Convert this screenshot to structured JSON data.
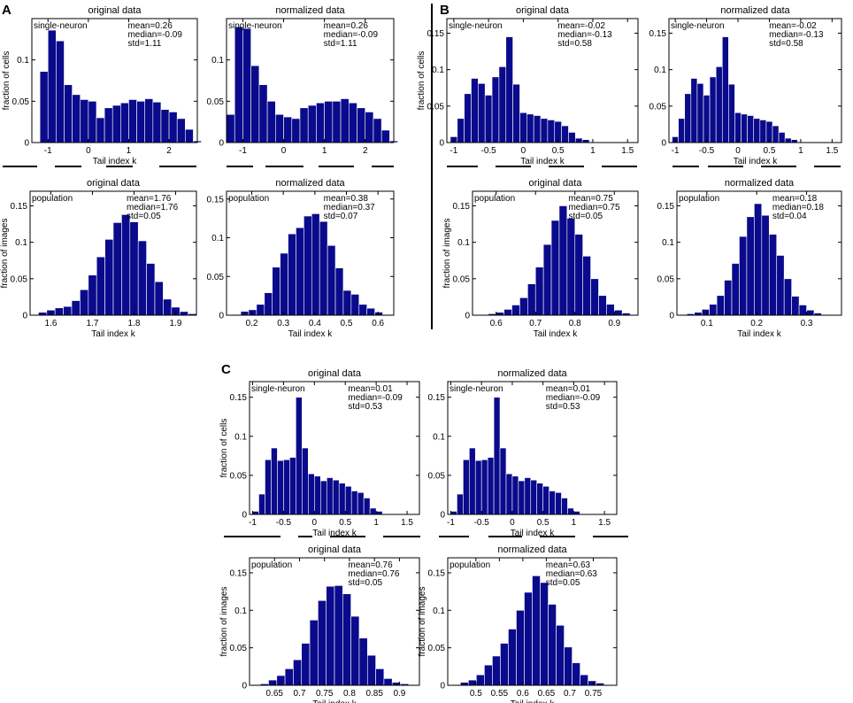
{
  "panel_labels": [
    "A",
    "B",
    "C"
  ],
  "chart_data": [
    {
      "id": "A1",
      "type": "bar",
      "panel": "A",
      "title": "original data",
      "subtitle": "single-neuron",
      "xlabel": "Tail index k",
      "ylabel": "fraction of cells",
      "stats": [
        "mean=0.26",
        "median=-0.09",
        "std=1.11"
      ],
      "xlim": [
        -1.4,
        2.7
      ],
      "ylim": [
        0,
        0.15
      ],
      "xticks": [
        -1,
        0,
        1,
        2
      ],
      "xticklabels": [
        "-1",
        "0",
        "1",
        "2"
      ],
      "yticks": [
        0,
        0.05,
        0.1
      ],
      "yticklabels": [
        "0",
        "0.05",
        "0.1"
      ],
      "bin_start": -1.4,
      "bin_width": 0.2,
      "values": [
        0.0,
        0.086,
        0.136,
        0.123,
        0.07,
        0.058,
        0.052,
        0.05,
        0.03,
        0.042,
        0.045,
        0.048,
        0.052,
        0.05,
        0.053,
        0.049,
        0.04,
        0.037,
        0.029,
        0.016,
        0.002
      ]
    },
    {
      "id": "A2",
      "type": "bar",
      "panel": "A",
      "title": "normalized data",
      "subtitle": "single-neuron",
      "xlabel": "",
      "ylabel": "",
      "stats": [
        "mean=0.26",
        "median=-0.09",
        "std=1.11"
      ],
      "xlim": [
        -1.4,
        2.7
      ],
      "ylim": [
        0,
        0.15
      ],
      "xticks": [
        -1,
        0,
        1,
        2
      ],
      "xticklabels": [
        "-1",
        "0",
        "1",
        "2"
      ],
      "yticks": [
        0,
        0.05,
        0.1
      ],
      "yticklabels": [
        "0",
        "0.05",
        "0.1"
      ],
      "bin_start": -1.4,
      "bin_width": 0.2,
      "values": [
        0.034,
        0.14,
        0.138,
        0.093,
        0.07,
        0.05,
        0.034,
        0.031,
        0.029,
        0.042,
        0.045,
        0.048,
        0.05,
        0.05,
        0.053,
        0.048,
        0.042,
        0.037,
        0.029,
        0.015,
        0.002
      ]
    },
    {
      "id": "A3",
      "type": "bar",
      "panel": "A",
      "title": "original data",
      "subtitle": "population",
      "xlabel": "Tail index k",
      "ylabel": "fraction of images",
      "stats": [
        "mean=1.76",
        "median=1.76",
        "std=0.05"
      ],
      "xlim": [
        1.55,
        1.95
      ],
      "ylim": [
        0,
        0.17
      ],
      "xticks": [
        1.6,
        1.7,
        1.8,
        1.9
      ],
      "xticklabels": [
        "1.6",
        "1.7",
        "1.8",
        "1.9"
      ],
      "yticks": [
        0,
        0.05,
        0.1,
        0.15
      ],
      "yticklabels": [
        "0",
        "0.05",
        "0.1",
        "0.15"
      ],
      "bin_start": 1.55,
      "bin_width": 0.02,
      "values": [
        0.001,
        0.004,
        0.007,
        0.01,
        0.012,
        0.02,
        0.035,
        0.055,
        0.08,
        0.104,
        0.127,
        0.138,
        0.128,
        0.102,
        0.071,
        0.046,
        0.022,
        0.011,
        0.005,
        0.002
      ]
    },
    {
      "id": "A4",
      "type": "bar",
      "panel": "A",
      "title": "normalized data",
      "subtitle": "population",
      "xlabel": "Tail index k",
      "ylabel": "",
      "stats": [
        "mean=0.38",
        "median=0.37",
        "std=0.07"
      ],
      "xlim": [
        0.12,
        0.65
      ],
      "ylim": [
        0,
        0.16
      ],
      "xticks": [
        0.2,
        0.3,
        0.4,
        0.5,
        0.6
      ],
      "xticklabels": [
        "0.2",
        "0.3",
        "0.4",
        "0.5",
        "0.6"
      ],
      "yticks": [
        0,
        0.05,
        0.1,
        0.15
      ],
      "yticklabels": [
        "0",
        "0.05",
        "0.1",
        "0.15"
      ],
      "bin_start": 0.14,
      "bin_width": 0.025,
      "values": [
        0.001,
        0.005,
        0.007,
        0.014,
        0.029,
        0.062,
        0.08,
        0.105,
        0.113,
        0.128,
        0.131,
        0.121,
        0.09,
        0.061,
        0.032,
        0.027,
        0.014,
        0.009,
        0.004,
        0.001
      ]
    },
    {
      "id": "B1",
      "type": "bar",
      "panel": "B",
      "title": "original data",
      "subtitle": "single-neuron",
      "xlabel": "Tail index k",
      "ylabel": "fraction of cells",
      "stats": [
        "mean=-0.02",
        "median=-0.13",
        "std=0.58"
      ],
      "xlim": [
        -1.1,
        1.65
      ],
      "ylim": [
        0,
        0.17
      ],
      "xticks": [
        -1,
        -0.5,
        0,
        0.5,
        1,
        1.5
      ],
      "xticklabels": [
        "-1",
        "-0.5",
        "0",
        "0.5",
        "1",
        "1.5"
      ],
      "yticks": [
        0,
        0.05,
        0.1,
        0.15
      ],
      "yticklabels": [
        "0",
        "0.05",
        "0.1",
        "0.15"
      ],
      "bin_start": -1.05,
      "bin_width": 0.1,
      "values": [
        0.008,
        0.033,
        0.067,
        0.088,
        0.081,
        0.065,
        0.09,
        0.104,
        0.145,
        0.08,
        0.041,
        0.039,
        0.037,
        0.033,
        0.031,
        0.029,
        0.023,
        0.014,
        0.006,
        0.004,
        0.001
      ]
    },
    {
      "id": "B2",
      "type": "bar",
      "panel": "B",
      "title": "normalized data",
      "subtitle": "single-neuron",
      "xlabel": "Tail index k",
      "ylabel": "",
      "stats": [
        "mean=-0.02",
        "median=-0.13",
        "std=0.58"
      ],
      "xlim": [
        -1.1,
        1.65
      ],
      "ylim": [
        0,
        0.17
      ],
      "xticks": [
        -1,
        -0.5,
        0,
        0.5,
        1,
        1.5
      ],
      "xticklabels": [
        "-1",
        "-0.5",
        "0",
        "0.5",
        "1",
        "1.5"
      ],
      "yticks": [
        0,
        0.05,
        0.1,
        0.15
      ],
      "yticklabels": [
        "0",
        "0.05",
        "0.1",
        "0.15"
      ],
      "bin_start": -1.05,
      "bin_width": 0.1,
      "values": [
        0.008,
        0.033,
        0.067,
        0.088,
        0.081,
        0.065,
        0.09,
        0.104,
        0.145,
        0.08,
        0.041,
        0.039,
        0.037,
        0.033,
        0.031,
        0.029,
        0.023,
        0.014,
        0.006,
        0.004,
        0.001
      ]
    },
    {
      "id": "B3",
      "type": "bar",
      "panel": "B",
      "title": "original data",
      "subtitle": "population",
      "xlabel": "Tail index k",
      "ylabel": "fraction of images",
      "stats": [
        "mean=0.75",
        "median=0.75",
        "std=0.05"
      ],
      "xlim": [
        0.54,
        0.96
      ],
      "ylim": [
        0,
        0.17
      ],
      "xticks": [
        0.6,
        0.7,
        0.8,
        0.9
      ],
      "xticklabels": [
        "0.6",
        "0.7",
        "0.8",
        "0.9"
      ],
      "yticks": [
        0,
        0.05,
        0.1,
        0.15
      ],
      "yticklabels": [
        "0",
        "0.05",
        "0.1",
        "0.15"
      ],
      "bin_start": 0.56,
      "bin_width": 0.02,
      "values": [
        0.001,
        0.002,
        0.004,
        0.008,
        0.014,
        0.024,
        0.043,
        0.066,
        0.097,
        0.13,
        0.15,
        0.133,
        0.111,
        0.081,
        0.05,
        0.027,
        0.015,
        0.007,
        0.003,
        0.001
      ]
    },
    {
      "id": "B4",
      "type": "bar",
      "panel": "B",
      "title": "normalized data",
      "subtitle": "population",
      "xlabel": "Tail index k",
      "ylabel": "",
      "stats": [
        "mean=0.18",
        "median=0.18",
        "std=0.04"
      ],
      "xlim": [
        0.04,
        0.37
      ],
      "ylim": [
        0,
        0.17
      ],
      "xticks": [
        0.1,
        0.2,
        0.3
      ],
      "xticklabels": [
        "0.1",
        "0.2",
        "0.3"
      ],
      "yticks": [
        0,
        0.05,
        0.1,
        0.15
      ],
      "yticklabels": [
        "0",
        "0.05",
        "0.1",
        "0.15"
      ],
      "bin_start": 0.045,
      "bin_width": 0.015,
      "values": [
        0.001,
        0.002,
        0.004,
        0.008,
        0.015,
        0.027,
        0.048,
        0.071,
        0.108,
        0.135,
        0.153,
        0.137,
        0.111,
        0.082,
        0.05,
        0.026,
        0.014,
        0.007,
        0.003,
        0.001
      ]
    },
    {
      "id": "C1",
      "type": "bar",
      "panel": "C",
      "title": "original data",
      "subtitle": "single-neuron",
      "xlabel": "Tail index k",
      "ylabel": "fraction of cells",
      "stats": [
        "mean=0.01",
        "median=-0.09",
        "std=0.53"
      ],
      "xlim": [
        -1.05,
        1.7
      ],
      "ylim": [
        0,
        0.17
      ],
      "xticks": [
        -1,
        -0.5,
        0,
        0.5,
        1,
        1.5
      ],
      "xticklabels": [
        "-1",
        "-0.5",
        "0",
        "0.5",
        "1",
        "1.5"
      ],
      "yticks": [
        0,
        0.05,
        0.1,
        0.15
      ],
      "yticklabels": [
        "0",
        "0.05",
        "0.1",
        "0.15"
      ],
      "bin_start": -1.0,
      "bin_width": 0.1,
      "values": [
        0.004,
        0.026,
        0.07,
        0.085,
        0.069,
        0.07,
        0.073,
        0.15,
        0.085,
        0.052,
        0.049,
        0.043,
        0.047,
        0.044,
        0.04,
        0.036,
        0.03,
        0.028,
        0.021,
        0.008,
        0.004
      ]
    },
    {
      "id": "C2",
      "type": "bar",
      "panel": "C",
      "title": "normalized data",
      "subtitle": "single-neuron",
      "xlabel": "Tail index k",
      "ylabel": "",
      "stats": [
        "mean=0.01",
        "median=-0.09",
        "std=0.53"
      ],
      "xlim": [
        -1.05,
        1.7
      ],
      "ylim": [
        0,
        0.17
      ],
      "xticks": [
        -1,
        -0.5,
        0,
        0.5,
        1,
        1.5
      ],
      "xticklabels": [
        "-1",
        "-0.5",
        "0",
        "0.5",
        "1",
        "1.5"
      ],
      "yticks": [
        0,
        0.05,
        0.1,
        0.15
      ],
      "yticklabels": [
        "0",
        "0.05",
        "0.1",
        "0.15"
      ],
      "bin_start": -1.0,
      "bin_width": 0.1,
      "values": [
        0.004,
        0.026,
        0.07,
        0.085,
        0.069,
        0.07,
        0.073,
        0.15,
        0.085,
        0.052,
        0.049,
        0.043,
        0.047,
        0.044,
        0.04,
        0.036,
        0.03,
        0.028,
        0.021,
        0.008,
        0.004
      ]
    },
    {
      "id": "C3",
      "type": "bar",
      "panel": "C",
      "title": "original data",
      "subtitle": "population",
      "xlabel": "Tail index k",
      "ylabel": "fraction of images",
      "stats": [
        "mean=0.76",
        "median=0.76",
        "std=0.05"
      ],
      "xlim": [
        0.6,
        0.94
      ],
      "ylim": [
        0,
        0.17
      ],
      "xticks": [
        0.65,
        0.7,
        0.75,
        0.8,
        0.85,
        0.9
      ],
      "xticklabels": [
        "0.65",
        "0.7",
        "0.75",
        "0.8",
        "0.85",
        "0.9"
      ],
      "yticks": [
        0,
        0.05,
        0.1,
        0.15
      ],
      "yticklabels": [
        "0",
        "0.05",
        "0.1",
        "0.15"
      ],
      "bin_start": 0.605,
      "bin_width": 0.0165,
      "values": [
        0.001,
        0.002,
        0.007,
        0.013,
        0.022,
        0.034,
        0.056,
        0.087,
        0.113,
        0.132,
        0.133,
        0.122,
        0.092,
        0.063,
        0.04,
        0.022,
        0.009,
        0.004,
        0.002,
        0.001
      ]
    },
    {
      "id": "C4",
      "type": "bar",
      "panel": "C",
      "title": "normalized data",
      "subtitle": "population",
      "xlabel": "Tail index k",
      "ylabel": "fraction of images",
      "stats": [
        "mean=0.63",
        "median=0.63",
        "std=0.05"
      ],
      "xlim": [
        0.44,
        0.8
      ],
      "ylim": [
        0,
        0.17
      ],
      "xticks": [
        0.5,
        0.55,
        0.6,
        0.65,
        0.7,
        0.75
      ],
      "xticklabels": [
        "0.5",
        "0.55",
        "0.6",
        "0.65",
        "0.7",
        "0.75"
      ],
      "yticks": [
        0,
        0.05,
        0.1,
        0.15
      ],
      "yticklabels": [
        "0",
        "0.05",
        "0.1",
        "0.15"
      ],
      "bin_start": 0.45,
      "bin_width": 0.017,
      "values": [
        0.001,
        0.004,
        0.007,
        0.014,
        0.027,
        0.039,
        0.056,
        0.075,
        0.1,
        0.124,
        0.146,
        0.137,
        0.108,
        0.08,
        0.051,
        0.03,
        0.014,
        0.006,
        0.003,
        0.001
      ]
    }
  ]
}
